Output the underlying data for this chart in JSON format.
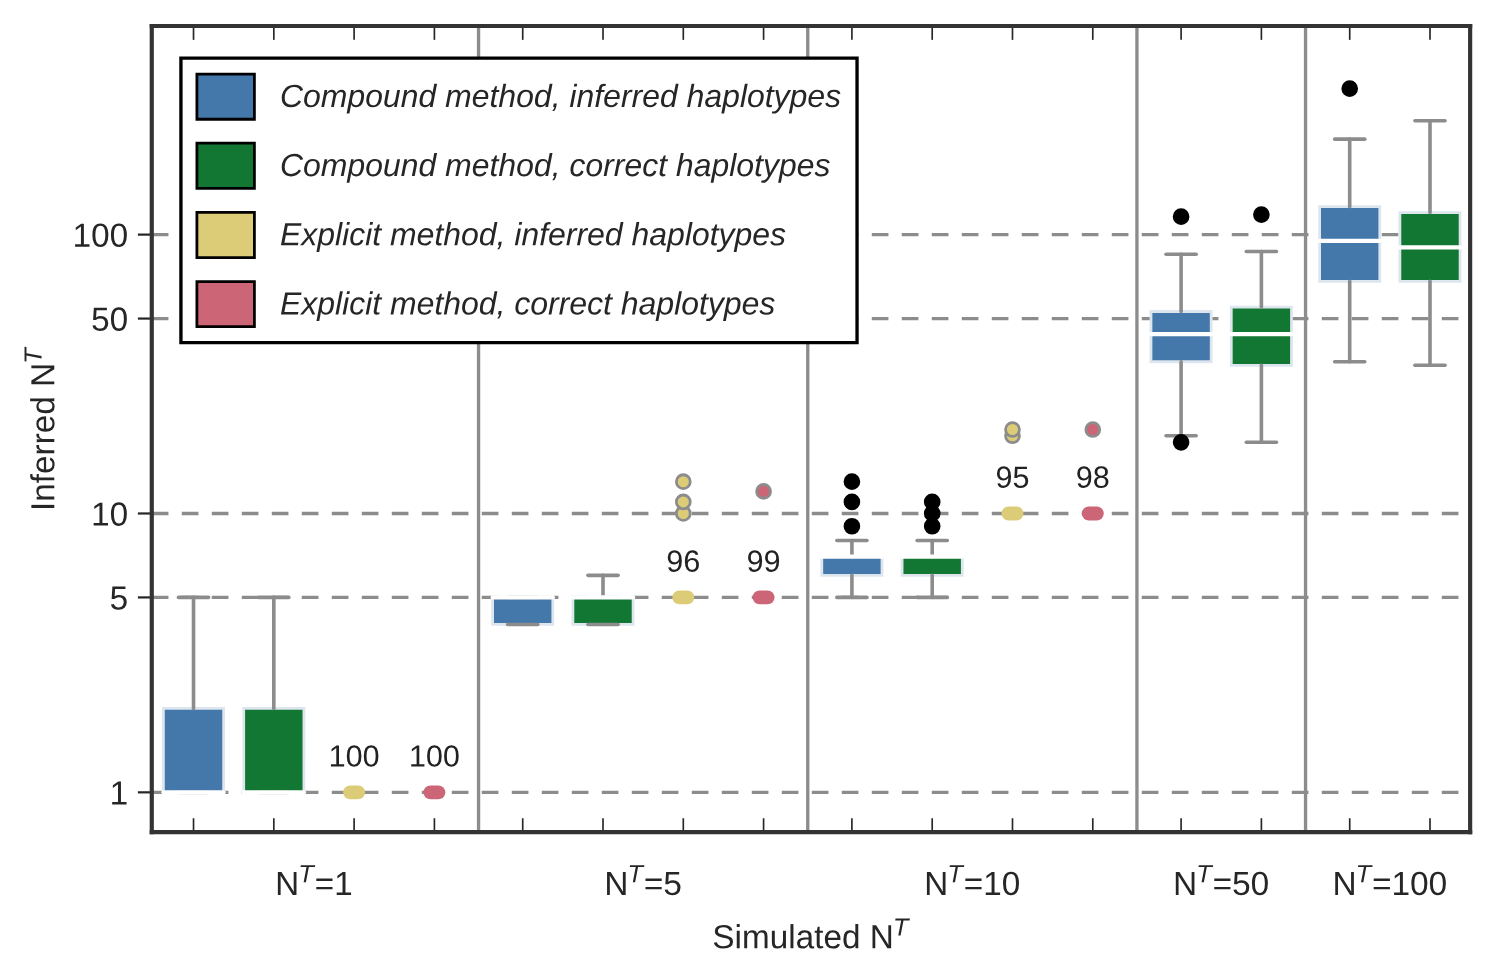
{
  "chart_data": {
    "type": "box",
    "xlabel": "Simulated N$^{T}$",
    "ylabel": "Inferred N$^{T}$",
    "categories": [
      "N$^{T}$=1",
      "N$^{T}$=5",
      "N$^{T}$=10",
      "N$^{T}$=50",
      "N$^{T}$=100"
    ],
    "log": true,
    "ylim": [
      0.72,
      560
    ],
    "yticks": [
      1,
      5,
      10,
      50,
      100
    ],
    "grid": "y",
    "legend": "top left",
    "series": [
      {
        "name": "Compound method, inferred haplotypes",
        "color": "#4477aa",
        "boxes": [
          {
            "low": 1,
            "q1": 1,
            "median": 1,
            "q3": 2,
            "high": 5
          },
          {
            "low": 4,
            "q1": 4,
            "median": 5,
            "q3": 5,
            "high": 5
          },
          {
            "low": 5,
            "q1": 6,
            "median": 7,
            "q3": 7,
            "high": 8,
            "outliers": [
              9,
              11,
              13
            ]
          },
          {
            "low": 19,
            "q1": 35,
            "median": 44,
            "q3": 53,
            "high": 85,
            "outliers": [
              18,
              116
            ]
          },
          {
            "low": 35,
            "q1": 68,
            "median": 95,
            "q3": 126,
            "high": 220,
            "outliers": [
              334
            ]
          }
        ]
      },
      {
        "name": "Compound method, correct haplotypes",
        "color": "#117733",
        "boxes": [
          {
            "low": 1,
            "q1": 1,
            "median": 1,
            "q3": 2,
            "high": 5
          },
          {
            "low": 4,
            "q1": 4,
            "median": 5,
            "q3": 5,
            "high": 6
          },
          {
            "low": 5,
            "q1": 6,
            "median": 7,
            "q3": 7,
            "high": 8,
            "outliers": [
              9,
              10,
              11
            ]
          },
          {
            "low": 18,
            "q1": 34,
            "median": 44,
            "q3": 55,
            "high": 87,
            "outliers": [
              118
            ]
          },
          {
            "low": 34,
            "q1": 68,
            "median": 90,
            "q3": 120,
            "high": 256
          }
        ]
      },
      {
        "name": "Explicit method, inferred haplotypes",
        "color": "#ddcc77",
        "boxes": [
          {
            "low": 1,
            "q1": 1,
            "median": 1,
            "q3": 1,
            "high": 1
          },
          {
            "low": 5,
            "q1": 5,
            "median": 5,
            "q3": 5,
            "high": 5,
            "outliers": [
              10,
              11,
              13
            ]
          },
          {
            "low": 10,
            "q1": 10,
            "median": 10,
            "q3": 10,
            "high": 10,
            "outliers": [
              19,
              20
            ]
          },
          null,
          null
        ],
        "value_labels": [
          "100",
          "96",
          "95",
          null,
          null
        ]
      },
      {
        "name": "Explicit method, correct haplotypes",
        "color": "#cc6677",
        "boxes": [
          {
            "low": 1,
            "q1": 1,
            "median": 1,
            "q3": 1,
            "high": 1
          },
          {
            "low": 5,
            "q1": 5,
            "median": 5,
            "q3": 5,
            "high": 5,
            "outliers": [
              12
            ]
          },
          {
            "low": 10,
            "q1": 10,
            "median": 10,
            "q3": 10,
            "high": 10,
            "outliers": [
              20
            ]
          },
          null,
          null
        ],
        "value_labels": [
          "100",
          "99",
          "98",
          null,
          null
        ]
      }
    ]
  }
}
